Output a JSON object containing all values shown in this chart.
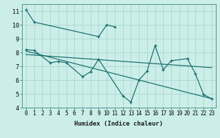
{
  "xlabel": "Humidex (Indice chaleur)",
  "xlim": [
    -0.5,
    23.5
  ],
  "ylim": [
    4,
    11.5
  ],
  "yticks": [
    4,
    5,
    6,
    7,
    8,
    9,
    10,
    11
  ],
  "xticks": [
    0,
    1,
    2,
    3,
    4,
    5,
    6,
    7,
    8,
    9,
    10,
    11,
    12,
    13,
    14,
    15,
    16,
    17,
    18,
    19,
    20,
    21,
    22,
    23
  ],
  "bg_color": "#cceee8",
  "line_color": "#1a7070",
  "grid_color": "#b0d8d4",
  "line1_x": [
    0,
    1,
    9,
    10,
    11
  ],
  "line1_y": [
    11.1,
    10.2,
    9.15,
    10.0,
    9.85
  ],
  "line2_x": [
    0,
    1,
    3,
    4,
    5,
    7,
    8,
    9,
    12,
    13,
    14,
    15,
    16,
    17,
    18,
    20,
    21,
    22,
    23
  ],
  "line2_y": [
    8.2,
    8.15,
    7.25,
    7.35,
    7.25,
    6.25,
    6.6,
    7.5,
    4.85,
    4.4,
    6.0,
    6.65,
    8.5,
    6.75,
    7.4,
    7.55,
    6.45,
    4.95,
    4.65
  ],
  "line3_x": [
    0,
    23
  ],
  "line3_y": [
    8.1,
    4.65
  ],
  "line4_x": [
    0,
    23
  ],
  "line4_y": [
    7.85,
    6.9
  ],
  "xlabel_fontsize": 6.5,
  "tick_fontsize": 5.5
}
